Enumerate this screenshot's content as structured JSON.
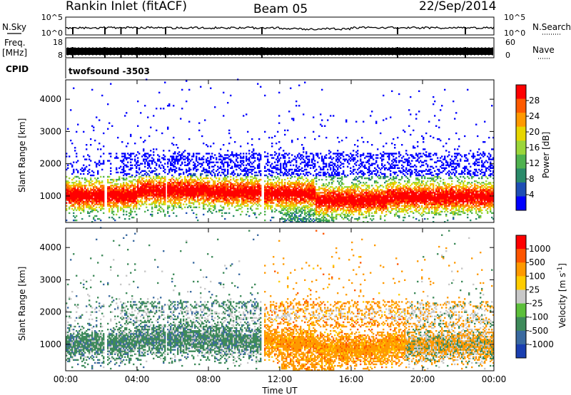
{
  "header": {
    "station": "Rankin Inlet (fitACF)",
    "beam": "Beam 05",
    "date": "22/Sep/2014"
  },
  "left_labels": {
    "nsky": "N.Sky",
    "freq": "Freq.",
    "freq_unit": "[MHz]",
    "cpid": "CPID"
  },
  "right_labels": {
    "nsearch": "N.Search",
    "nave": "Nave"
  },
  "cpid_text": "twofsound -3503",
  "chart_data": [
    {
      "type": "line",
      "panel": "noise",
      "y_ticks_left": [
        "10^5",
        "10^0"
      ],
      "y_ticks_right": [
        "10^5",
        "10^0"
      ],
      "series": [
        {
          "name": "N.Sky"
        },
        {
          "name": "N.Search"
        }
      ]
    },
    {
      "type": "line",
      "panel": "frequency",
      "y_ticks_left": [
        "18",
        "8"
      ],
      "y_ticks_right": [
        "60",
        "0"
      ],
      "series": [
        {
          "name": "Freq."
        },
        {
          "name": "Nave"
        }
      ]
    },
    {
      "type": "heatmap",
      "panel": "power",
      "ylabel": "Slant Range [km]",
      "ylim": [
        180,
        4600
      ],
      "y_ticks": [
        "1000",
        "2000",
        "3000",
        "4000"
      ],
      "colorbar": {
        "label": "Power [dB]",
        "ticks": [
          "28",
          "24",
          "20",
          "16",
          "12",
          "8",
          "4"
        ],
        "colors": [
          "#0000ff",
          "#1f4fb5",
          "#2a8a6a",
          "#4fb24f",
          "#9bd63a",
          "#e7d600",
          "#ff9900",
          "#ff5a00",
          "#ff0000"
        ]
      }
    },
    {
      "type": "heatmap",
      "panel": "velocity",
      "ylabel": "Slant Range [km]",
      "ylim": [
        180,
        4600
      ],
      "y_ticks": [
        "1000",
        "2000",
        "3000",
        "4000"
      ],
      "x_ticks": [
        "00:00",
        "04:00",
        "08:00",
        "12:00",
        "16:00",
        "20:00",
        "00:00"
      ],
      "xlabel": "Time UT",
      "colorbar": {
        "label": "Velocity [m s",
        "label_sup": "-1",
        "label_end": "]",
        "ticks": [
          "1000",
          "500",
          "100",
          "25",
          "-25",
          "-100",
          "-500",
          "-1000"
        ],
        "colors": [
          "#1a3fb0",
          "#3a6aa0",
          "#3e8a5a",
          "#5cbf3a",
          "#c8c8c8",
          "#ffcc00",
          "#ff9900",
          "#ff5500",
          "#ff0000"
        ]
      }
    }
  ]
}
